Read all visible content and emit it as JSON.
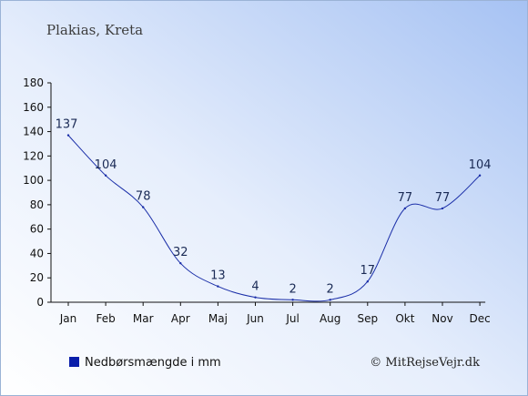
{
  "chart_data": {
    "type": "line",
    "title": "Plakias, Kreta",
    "categories": [
      "Jan",
      "Feb",
      "Mar",
      "Apr",
      "Maj",
      "Jun",
      "Jul",
      "Aug",
      "Sep",
      "Okt",
      "Nov",
      "Dec"
    ],
    "series": [
      {
        "name": "Nedbørsmængde i mm",
        "values": [
          137,
          104,
          78,
          32,
          13,
          4,
          2,
          2,
          17,
          77,
          77,
          104
        ],
        "color": "#1a2ea8"
      }
    ],
    "ylim": [
      0,
      180
    ],
    "yticks": [
      0,
      20,
      40,
      60,
      80,
      100,
      120,
      140,
      160,
      180
    ],
    "grid": false,
    "legend_position": "bottom-left",
    "credit": "© MitRejseVejr.dk",
    "colors": {
      "background_top": "#b3ccf5",
      "background_bottom": "#ffffff",
      "line": "#1a2ea8",
      "legend_marker": "#0a1eaa"
    }
  }
}
